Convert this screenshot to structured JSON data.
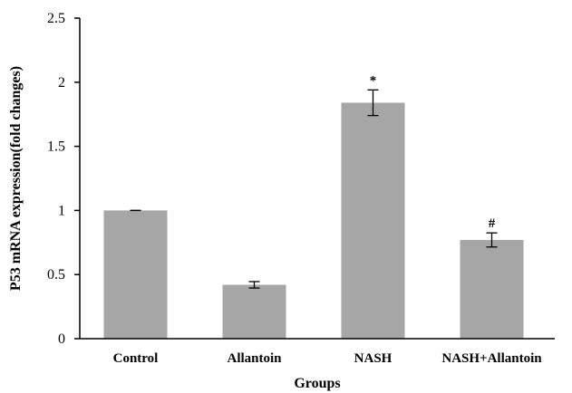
{
  "chart_data": {
    "type": "bar",
    "categories": [
      "Control",
      "Allantoin",
      "NASH",
      "NASH+Allantoin"
    ],
    "values": [
      1.0,
      0.42,
      1.84,
      0.77
    ],
    "errors": [
      0.0,
      0.025,
      0.1,
      0.055
    ],
    "annotations": [
      "",
      "",
      "*",
      "#"
    ],
    "xlabel": "Groups",
    "ylabel": "P53 mRNA expression(fold changes)",
    "ylim": [
      0,
      2.5
    ],
    "yticks": [
      "0",
      "0.5",
      "1",
      "1.5",
      "2",
      "2.5"
    ],
    "ytick_values": [
      0,
      0.5,
      1,
      1.5,
      2,
      2.5
    ],
    "grid": false,
    "bar_color": "#a6a6a6"
  }
}
